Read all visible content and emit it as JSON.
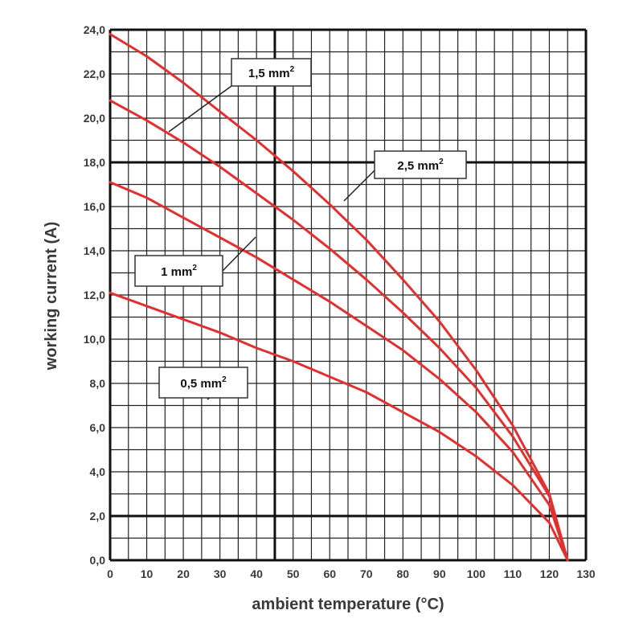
{
  "chart_data": {
    "type": "line",
    "title": "",
    "xlabel": "ambient temperature (°C)",
    "ylabel": "working current (A)",
    "xlim": [
      0,
      130
    ],
    "ylim": [
      0,
      24
    ],
    "x_ticks": [
      "0",
      "10",
      "20",
      "30",
      "40",
      "50",
      "60",
      "70",
      "80",
      "90",
      "100",
      "110",
      "120",
      "130"
    ],
    "y_ticks": [
      "0,0",
      "2,0",
      "4,0",
      "6,0",
      "8,0",
      "10,0",
      "12,0",
      "14,0",
      "16,0",
      "18,0",
      "20,0",
      "22,0",
      "24,0"
    ],
    "grid": true,
    "line_color": "#e03030",
    "series": [
      {
        "name": "0,5 mm",
        "superscript": "2",
        "x": [
          0,
          10,
          20,
          30,
          40,
          50,
          60,
          70,
          80,
          90,
          100,
          110,
          120,
          125
        ],
        "y": [
          12.1,
          11.5,
          10.9,
          10.3,
          9.6,
          9.0,
          8.3,
          7.6,
          6.7,
          5.8,
          4.7,
          3.4,
          1.7,
          0.0
        ]
      },
      {
        "name": "1 mm",
        "superscript": "2",
        "x": [
          0,
          10,
          20,
          30,
          40,
          50,
          60,
          70,
          80,
          90,
          100,
          110,
          120,
          125
        ],
        "y": [
          17.1,
          16.4,
          15.5,
          14.6,
          13.7,
          12.7,
          11.7,
          10.6,
          9.5,
          8.2,
          6.7,
          4.9,
          2.5,
          0.0
        ]
      },
      {
        "name": "1,5 mm",
        "superscript": "2",
        "x": [
          0,
          10,
          20,
          30,
          40,
          50,
          60,
          70,
          80,
          90,
          100,
          110,
          120,
          125
        ],
        "y": [
          20.8,
          19.9,
          18.9,
          17.8,
          16.6,
          15.4,
          14.1,
          12.7,
          11.2,
          9.6,
          7.8,
          5.6,
          2.9,
          0.0
        ]
      },
      {
        "name": "2,5 mm",
        "superscript": "2",
        "x": [
          0,
          10,
          20,
          30,
          40,
          50,
          60,
          70,
          80,
          90,
          100,
          110,
          120,
          125
        ],
        "y": [
          23.8,
          22.8,
          21.6,
          20.3,
          19.0,
          17.6,
          16.1,
          14.5,
          12.7,
          10.8,
          8.6,
          6.1,
          3.0,
          0.0
        ]
      }
    ]
  }
}
